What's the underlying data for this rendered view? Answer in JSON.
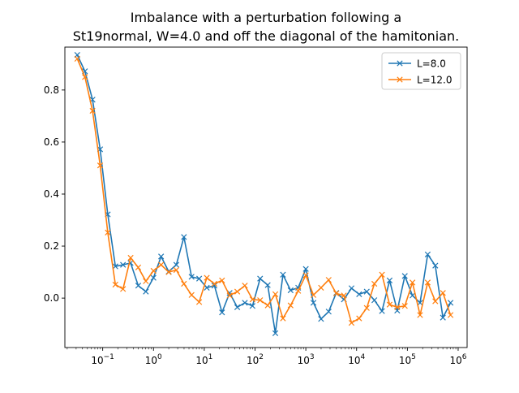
{
  "chart_data": {
    "type": "line",
    "title_line1": "Imbalance with a perturbation following a",
    "title_line2": "St19normal, W=4.0 and off the diagonal of the hamitonian.",
    "xlabel": "",
    "ylabel": "",
    "xscale": "log",
    "xlim": [
      0.018,
      1500000
    ],
    "ylim": [
      -0.19,
      0.965
    ],
    "grid": false,
    "legend_position": "top-right",
    "x_ticks": [
      {
        "value": 0.1,
        "base": "10",
        "exp": "−1"
      },
      {
        "value": 1,
        "base": "10",
        "exp": "0"
      },
      {
        "value": 10,
        "base": "10",
        "exp": "1"
      },
      {
        "value": 100,
        "base": "10",
        "exp": "2"
      },
      {
        "value": 1000,
        "base": "10",
        "exp": "3"
      },
      {
        "value": 10000,
        "base": "10",
        "exp": "4"
      },
      {
        "value": 100000,
        "base": "10",
        "exp": "5"
      },
      {
        "value": 1000000,
        "base": "10",
        "exp": "6"
      }
    ],
    "y_ticks": [
      {
        "value": 0.0,
        "label": "0.0"
      },
      {
        "value": 0.2,
        "label": "0.2"
      },
      {
        "value": 0.4,
        "label": "0.4"
      },
      {
        "value": 0.6,
        "label": "0.6"
      },
      {
        "value": 0.8,
        "label": "0.8"
      }
    ],
    "x": [
      0.0316,
      0.0447,
      0.0631,
      0.0891,
      0.1259,
      0.1778,
      0.2512,
      0.3548,
      0.5012,
      0.7079,
      1.0,
      1.413,
      1.995,
      2.818,
      3.981,
      5.623,
      7.943,
      11.22,
      15.85,
      22.39,
      31.62,
      44.67,
      63.1,
      89.13,
      125.9,
      177.8,
      251.2,
      354.8,
      501.2,
      707.9,
      1000,
      1413,
      1995,
      2818,
      3981,
      5623,
      7943,
      11220,
      15850,
      22390,
      31620,
      44670,
      63100,
      89130,
      125900,
      177800,
      251200,
      354800,
      501200,
      707900
    ],
    "series": [
      {
        "name": "L=8.0",
        "color": "#1f77b4",
        "values": [
          0.935,
          0.872,
          0.763,
          0.572,
          0.322,
          0.122,
          0.128,
          0.135,
          0.048,
          0.025,
          0.078,
          0.16,
          0.102,
          0.128,
          0.235,
          0.082,
          0.075,
          0.04,
          0.048,
          -0.055,
          0.02,
          -0.035,
          -0.018,
          -0.03,
          0.075,
          0.05,
          -0.135,
          0.09,
          0.03,
          0.04,
          0.112,
          -0.018,
          -0.08,
          -0.052,
          0.02,
          -0.005,
          0.038,
          0.015,
          0.025,
          -0.008,
          -0.05,
          0.068,
          -0.048,
          0.085,
          0.01,
          -0.018,
          0.168,
          0.125,
          -0.075,
          -0.018
        ]
      },
      {
        "name": "L=12.0",
        "color": "#ff7f0e",
        "values": [
          0.92,
          0.85,
          0.72,
          0.51,
          0.252,
          0.052,
          0.035,
          0.155,
          0.118,
          0.065,
          0.105,
          0.128,
          0.1,
          0.108,
          0.055,
          0.012,
          -0.015,
          0.078,
          0.055,
          0.068,
          0.01,
          0.025,
          0.048,
          -0.005,
          -0.008,
          -0.028,
          0.015,
          -0.078,
          -0.028,
          0.028,
          0.088,
          0.012,
          0.04,
          0.07,
          0.018,
          0.01,
          -0.095,
          -0.078,
          -0.038,
          0.055,
          0.09,
          -0.025,
          -0.035,
          -0.03,
          0.06,
          -0.065,
          0.06,
          -0.012,
          0.02,
          -0.065
        ]
      }
    ]
  }
}
